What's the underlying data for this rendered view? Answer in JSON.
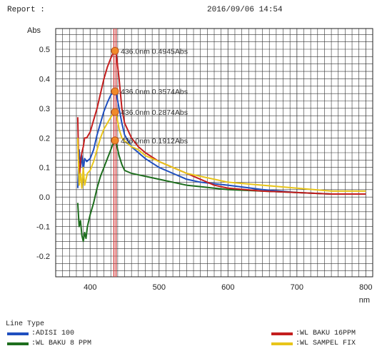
{
  "header": {
    "report_label": "Report :",
    "datetime": "2016/09/06 14:54"
  },
  "legend": {
    "title": "Line Type"
  },
  "chart_data": {
    "type": "line",
    "ylabel": "Abs",
    "xlabel": "nm",
    "xlim": [
      350,
      810
    ],
    "ylim": [
      -0.27,
      0.57
    ],
    "x_ticks": [
      400,
      500,
      600,
      700,
      800
    ],
    "y_ticks": [
      -0.2,
      -0.1,
      0.0,
      0.1,
      0.2,
      0.3,
      0.4,
      0.5
    ],
    "y_tick_labels": [
      "-0.2",
      "-0.1",
      "0.0",
      "0.1",
      "0.2",
      "0.3",
      "0.4",
      "0.5"
    ],
    "grid": true,
    "marker_line_x": 436,
    "series": [
      {
        "name": ":ADISI 100",
        "color": "#1f4fbf",
        "x": [
          382,
          384,
          386,
          388,
          390,
          392,
          395,
          400,
          405,
          410,
          415,
          420,
          425,
          430,
          434,
          436,
          438,
          442,
          446,
          450,
          460,
          470,
          480,
          500,
          520,
          540,
          560,
          580,
          600,
          650,
          700,
          750,
          800
        ],
        "y": [
          0.03,
          0.16,
          0.1,
          0.14,
          0.09,
          0.13,
          0.12,
          0.13,
          0.16,
          0.21,
          0.25,
          0.29,
          0.32,
          0.345,
          0.355,
          0.357,
          0.35,
          0.3,
          0.25,
          0.21,
          0.17,
          0.15,
          0.13,
          0.1,
          0.08,
          0.06,
          0.05,
          0.045,
          0.04,
          0.025,
          0.015,
          0.01,
          0.01
        ]
      },
      {
        "name": ":WL BAKU 8 PPM",
        "color": "#1e6e1e",
        "x": [
          382,
          384,
          386,
          388,
          390,
          392,
          394,
          396,
          400,
          405,
          410,
          415,
          420,
          425,
          430,
          434,
          436,
          438,
          442,
          446,
          450,
          460,
          470,
          480,
          500,
          520,
          540,
          560,
          580,
          600,
          650,
          700,
          750,
          800
        ],
        "y": [
          -0.02,
          -0.1,
          -0.08,
          -0.13,
          -0.15,
          -0.12,
          -0.14,
          -0.1,
          -0.06,
          -0.02,
          0.03,
          0.07,
          0.1,
          0.13,
          0.16,
          0.185,
          0.191,
          0.18,
          0.14,
          0.11,
          0.09,
          0.08,
          0.075,
          0.07,
          0.06,
          0.05,
          0.04,
          0.035,
          0.03,
          0.025,
          0.02,
          0.015,
          0.01,
          0.01
        ]
      },
      {
        "name": ":WL BAKU 16PPM",
        "color": "#c41e1e",
        "x": [
          382,
          384,
          386,
          388,
          390,
          392,
          395,
          400,
          405,
          410,
          415,
          420,
          425,
          430,
          434,
          436,
          438,
          442,
          446,
          450,
          460,
          470,
          480,
          500,
          520,
          540,
          560,
          580,
          600,
          650,
          700,
          750,
          800
        ],
        "y": [
          0.27,
          0.05,
          0.12,
          0.15,
          0.17,
          0.2,
          0.2,
          0.22,
          0.26,
          0.3,
          0.35,
          0.4,
          0.44,
          0.47,
          0.49,
          0.4945,
          0.48,
          0.4,
          0.3,
          0.25,
          0.2,
          0.17,
          0.15,
          0.12,
          0.1,
          0.08,
          0.06,
          0.04,
          0.03,
          0.02,
          0.015,
          0.01,
          0.01
        ]
      },
      {
        "name": ":WL SAMPEL FIX",
        "color": "#e8c51a",
        "x": [
          382,
          384,
          386,
          388,
          390,
          392,
          394,
          396,
          400,
          405,
          410,
          415,
          420,
          425,
          430,
          434,
          436,
          438,
          442,
          446,
          450,
          460,
          470,
          480,
          500,
          520,
          540,
          560,
          580,
          600,
          650,
          700,
          750,
          800
        ],
        "y": [
          0.2,
          0.04,
          0.08,
          0.03,
          0.1,
          0.04,
          0.06,
          0.08,
          0.09,
          0.12,
          0.16,
          0.2,
          0.23,
          0.25,
          0.27,
          0.283,
          0.287,
          0.28,
          0.23,
          0.2,
          0.19,
          0.17,
          0.16,
          0.14,
          0.12,
          0.1,
          0.08,
          0.07,
          0.06,
          0.05,
          0.04,
          0.03,
          0.02,
          0.02
        ]
      }
    ],
    "annotations": [
      {
        "x": 436,
        "y": 0.4945,
        "text": "436.0nm 0.4945Abs"
      },
      {
        "x": 436,
        "y": 0.3574,
        "text": "436.0nm 0.3574Abs"
      },
      {
        "x": 436,
        "y": 0.2874,
        "text": "436.0nm 0.2874Abs"
      },
      {
        "x": 436,
        "y": 0.1912,
        "text": "436.0nm 0.1912Abs"
      }
    ]
  }
}
